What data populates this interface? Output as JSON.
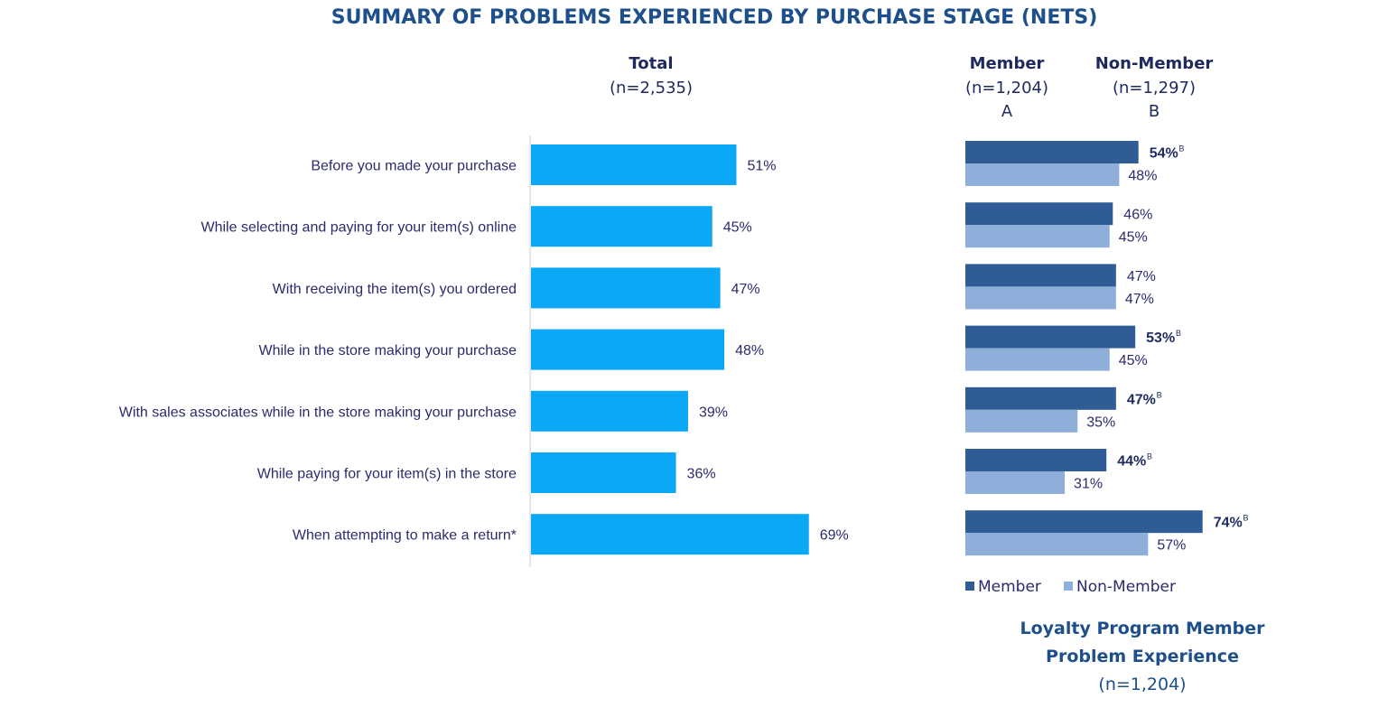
{
  "colors": {
    "total": "#0aa8f5",
    "member": "#2f5c94",
    "non_member": "#8eafd9",
    "title": "#1d4f8a",
    "text": "#2b2b6e"
  },
  "header": {
    "title": "SUMMARY OF PROBLEMS EXPERIENCED BY PURCHASE STAGE (NETS)",
    "total": {
      "label": "Total",
      "n": "(n=2,535)"
    },
    "member": {
      "label": "Member",
      "n": "(n=1,204)",
      "letter": "A"
    },
    "non_member": {
      "label": "Non-Member",
      "n": "(n=1,297)",
      "letter": "B"
    }
  },
  "chart_data": [
    {
      "type": "bar",
      "orientation": "horizontal",
      "categories": [
        "Before you made your purchase",
        "While selecting and paying for your item(s) online",
        "With receiving the item(s) you ordered",
        "While in the store making your purchase",
        "With sales associates while in the store making your purchase",
        "While paying for your item(s) in the store",
        "When attempting to make a return*"
      ],
      "series": [
        {
          "name": "Total",
          "values": [
            51,
            45,
            47,
            48,
            39,
            36,
            69
          ],
          "labels": [
            "51%",
            "45%",
            "47%",
            "48%",
            "39%",
            "36%",
            "69%"
          ]
        }
      ],
      "xlim": [
        0,
        100
      ]
    },
    {
      "type": "bar",
      "orientation": "horizontal",
      "categories": [
        "Before you made your purchase",
        "While selecting and paying for your item(s) online",
        "With receiving the item(s) you ordered",
        "While in the store making your purchase",
        "With sales associates while in the store making your purchase",
        "While paying for your item(s) in the store",
        "When attempting to make a return*"
      ],
      "series": [
        {
          "name": "Member",
          "values": [
            54,
            46,
            47,
            53,
            47,
            44,
            74
          ],
          "labels": [
            "54%",
            "46%",
            "47%",
            "53%",
            "47%",
            "44%",
            "74%"
          ],
          "significance": [
            "B",
            "",
            "",
            "B",
            "B",
            "B",
            "B"
          ]
        },
        {
          "name": "Non-Member",
          "values": [
            48,
            45,
            47,
            45,
            35,
            31,
            57
          ],
          "labels": [
            "48%",
            "45%",
            "47%",
            "45%",
            "35%",
            "31%",
            "57%"
          ]
        }
      ],
      "legend": {
        "position": "bottom",
        "items": [
          "Member",
          "Non-Member"
        ]
      },
      "xlim": [
        0,
        100
      ]
    }
  ],
  "footnote": {
    "line1": "Loyalty Program Member",
    "line2": "Problem Experience",
    "line3": "(n=1,204)"
  }
}
